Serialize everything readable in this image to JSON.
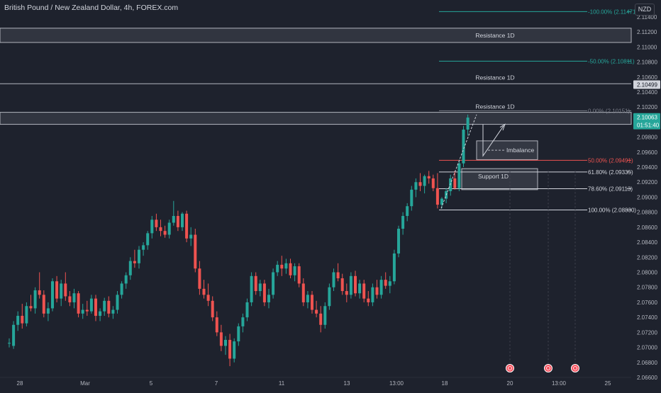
{
  "header": {
    "symbol_title": "British Pound / New Zealand Dollar, 4h, FOREX.com",
    "currency": "NZD"
  },
  "colors": {
    "background": "#1e222d",
    "up": "#26a69a",
    "down": "#ef5350",
    "zone": "#787b86",
    "fib_teal": "#26a69a",
    "fib_red": "#ef5350"
  },
  "chart_data": {
    "type": "candlestick",
    "title": "British Pound / New Zealand Dollar, 4h, FOREX.com",
    "ylabel": "NZD",
    "ylim": [
      2.066,
      2.1155
    ],
    "grid": false,
    "x_tick_labels": [
      "28",
      "Mar",
      "5",
      "7",
      "11",
      "13",
      "13:00",
      "18",
      "20",
      "13:00",
      "25"
    ],
    "y_tick_labels": [
      "2.11400",
      "2.11200",
      "2.11000",
      "2.10800",
      "2.10600",
      "2.10400",
      "2.10200",
      "2.09800",
      "2.09600",
      "2.09400",
      "2.09200",
      "2.09000",
      "2.08800",
      "2.08600",
      "2.08400",
      "2.08200",
      "2.08000",
      "2.07800",
      "2.07600",
      "2.07400",
      "2.07200",
      "2.07000",
      "2.06800",
      "2.06600"
    ],
    "price_labels": [
      {
        "text": "2.10499",
        "value": 2.10499,
        "style": "light"
      },
      {
        "text": "2.10063",
        "value": 2.10063,
        "style": "green"
      },
      {
        "text": "01:51:40",
        "value": 2.0996,
        "style": "green"
      }
    ],
    "candles": [
      [
        2.0706,
        2.0712,
        2.07,
        2.0706
      ],
      [
        2.0702,
        2.0735,
        2.0698,
        2.073
      ],
      [
        2.073,
        2.0748,
        2.0722,
        2.0742
      ],
      [
        2.0742,
        2.0758,
        2.0725,
        2.0732
      ],
      [
        2.0732,
        2.076,
        2.0728,
        2.0755
      ],
      [
        2.0755,
        2.077,
        2.0748,
        2.0752
      ],
      [
        2.0752,
        2.078,
        2.0745,
        2.0776
      ],
      [
        2.0776,
        2.08,
        2.0765,
        2.077
      ],
      [
        2.077,
        2.0776,
        2.074,
        2.0745
      ],
      [
        2.0745,
        2.076,
        2.0735,
        2.0752
      ],
      [
        2.0752,
        2.0792,
        2.0748,
        2.0788
      ],
      [
        2.0788,
        2.0795,
        2.076,
        2.0765
      ],
      [
        2.0765,
        2.079,
        2.0755,
        2.0785
      ],
      [
        2.0785,
        2.08,
        2.0762,
        2.0768
      ],
      [
        2.0768,
        2.0775,
        2.0755,
        2.076
      ],
      [
        2.076,
        2.0778,
        2.0752,
        2.0772
      ],
      [
        2.0772,
        2.0775,
        2.074,
        2.0745
      ],
      [
        2.0745,
        2.0758,
        2.0738,
        2.075
      ],
      [
        2.075,
        2.0762,
        2.0742,
        2.0748
      ],
      [
        2.0748,
        2.077,
        2.0745,
        2.0765
      ],
      [
        2.0765,
        2.077,
        2.0735,
        2.0742
      ],
      [
        2.0742,
        2.0752,
        2.0735,
        2.0748
      ],
      [
        2.0748,
        2.0766,
        2.0742,
        2.0762
      ],
      [
        2.0762,
        2.0768,
        2.074,
        2.0745
      ],
      [
        2.0745,
        2.0755,
        2.0738,
        2.075
      ],
      [
        2.075,
        2.0775,
        2.0745,
        2.077
      ],
      [
        2.077,
        2.0788,
        2.0765,
        2.0785
      ],
      [
        2.0785,
        2.08,
        2.0778,
        2.0796
      ],
      [
        2.0796,
        2.082,
        2.079,
        2.0815
      ],
      [
        2.0815,
        2.083,
        2.0806,
        2.0812
      ],
      [
        2.0812,
        2.0835,
        2.0805,
        2.083
      ],
      [
        2.083,
        2.084,
        2.0822,
        2.0836
      ],
      [
        2.0836,
        2.0855,
        2.083,
        2.0852
      ],
      [
        2.0852,
        2.0875,
        2.0845,
        2.087
      ],
      [
        2.087,
        2.0878,
        2.0855,
        2.086
      ],
      [
        2.086,
        2.087,
        2.0848,
        2.0855
      ],
      [
        2.0855,
        2.0862,
        2.0846,
        2.085
      ],
      [
        2.085,
        2.087,
        2.0845,
        2.0866
      ],
      [
        2.0866,
        2.0895,
        2.0862,
        2.0875
      ],
      [
        2.0875,
        2.0882,
        2.0855,
        2.086
      ],
      [
        2.086,
        2.088,
        2.0855,
        2.0878
      ],
      [
        2.0878,
        2.0882,
        2.084,
        2.0845
      ],
      [
        2.0845,
        2.086,
        2.0835,
        2.085
      ],
      [
        2.085,
        2.0858,
        2.08,
        2.0805
      ],
      [
        2.0805,
        2.0815,
        2.077,
        2.0778
      ],
      [
        2.0778,
        2.079,
        2.0765,
        2.077
      ],
      [
        2.077,
        2.0785,
        2.0755,
        2.0762
      ],
      [
        2.0762,
        2.0768,
        2.0735,
        2.074
      ],
      [
        2.074,
        2.0748,
        2.0715,
        2.072
      ],
      [
        2.072,
        2.073,
        2.0695,
        2.0702
      ],
      [
        2.0702,
        2.0715,
        2.069,
        2.071
      ],
      [
        2.071,
        2.0718,
        2.0675,
        2.0685
      ],
      [
        2.0685,
        2.0712,
        2.068,
        2.0708
      ],
      [
        2.0708,
        2.0732,
        2.0702,
        2.0728
      ],
      [
        2.0728,
        2.0745,
        2.072,
        2.074
      ],
      [
        2.074,
        2.0765,
        2.0735,
        2.076
      ],
      [
        2.076,
        2.08,
        2.0755,
        2.0795
      ],
      [
        2.0795,
        2.08,
        2.077,
        2.0775
      ],
      [
        2.0775,
        2.079,
        2.0768,
        2.0785
      ],
      [
        2.0785,
        2.079,
        2.0755,
        2.076
      ],
      [
        2.076,
        2.0778,
        2.0752,
        2.077
      ],
      [
        2.077,
        2.0805,
        2.0765,
        2.08
      ],
      [
        2.08,
        2.0815,
        2.0795,
        2.081
      ],
      [
        2.081,
        2.0822,
        2.0795,
        2.0805
      ],
      [
        2.0805,
        2.0818,
        2.0798,
        2.0812
      ],
      [
        2.0812,
        2.0818,
        2.0792,
        2.0796
      ],
      [
        2.0796,
        2.0812,
        2.0788,
        2.0808
      ],
      [
        2.0808,
        2.0812,
        2.078,
        2.0785
      ],
      [
        2.0785,
        2.0792,
        2.0755,
        2.076
      ],
      [
        2.076,
        2.0775,
        2.0752,
        2.077
      ],
      [
        2.077,
        2.0775,
        2.0745,
        2.075
      ],
      [
        2.075,
        2.0762,
        2.074,
        2.0745
      ],
      [
        2.0745,
        2.0755,
        2.072,
        2.073
      ],
      [
        2.073,
        2.076,
        2.0725,
        2.0755
      ],
      [
        2.0755,
        2.0785,
        2.075,
        2.078
      ],
      [
        2.078,
        2.0805,
        2.0775,
        2.08
      ],
      [
        2.08,
        2.0812,
        2.0788,
        2.0792
      ],
      [
        2.0792,
        2.0798,
        2.077,
        2.0775
      ],
      [
        2.0775,
        2.0785,
        2.076,
        2.077
      ],
      [
        2.077,
        2.08,
        2.0765,
        2.0795
      ],
      [
        2.0795,
        2.0802,
        2.0768,
        2.0772
      ],
      [
        2.0772,
        2.079,
        2.0765,
        2.0785
      ],
      [
        2.0785,
        2.079,
        2.076,
        2.0765
      ],
      [
        2.0765,
        2.0775,
        2.0755,
        2.076
      ],
      [
        2.076,
        2.0785,
        2.0755,
        2.078
      ],
      [
        2.078,
        2.079,
        2.0765,
        2.077
      ],
      [
        2.077,
        2.0795,
        2.0765,
        2.079
      ],
      [
        2.079,
        2.08,
        2.0778,
        2.0782
      ],
      [
        2.0782,
        2.0795,
        2.0772,
        2.0788
      ],
      [
        2.0788,
        2.083,
        2.0784,
        2.0825
      ],
      [
        2.0825,
        2.0862,
        2.082,
        2.0858
      ],
      [
        2.0858,
        2.088,
        2.085,
        2.0875
      ],
      [
        2.0875,
        2.0892,
        2.0868,
        2.0888
      ],
      [
        2.0888,
        2.0915,
        2.0882,
        2.091
      ],
      [
        2.091,
        2.0925,
        2.09,
        2.092
      ],
      [
        2.092,
        2.0932,
        2.0908,
        2.0915
      ],
      [
        2.0915,
        2.093,
        2.0905,
        2.0928
      ],
      [
        2.0928,
        2.0935,
        2.0918,
        2.0925
      ],
      [
        2.0925,
        2.093,
        2.0908,
        2.0912
      ],
      [
        2.0912,
        2.0932,
        2.0885,
        2.089
      ],
      [
        2.089,
        2.09,
        2.0885,
        2.0898
      ],
      [
        2.0898,
        2.0912,
        2.0892,
        2.0908
      ],
      [
        2.0908,
        2.093,
        2.0902,
        2.0925
      ],
      [
        2.0925,
        2.0935,
        2.091,
        2.0912
      ],
      [
        2.0912,
        2.095,
        2.0908,
        2.0945
      ],
      [
        2.0945,
        2.0995,
        2.094,
        2.099
      ],
      [
        2.099,
        2.101,
        2.0982,
        2.1006
      ]
    ],
    "annotations": {
      "resistance_zones": [
        {
          "label": "Resistance 1D",
          "top": 2.1125,
          "bottom": 2.1106
        },
        {
          "label": "Resistance 1D",
          "top": 2.1051,
          "bottom": 2.1051
        },
        {
          "label": "Resistance 1D",
          "top": 2.1013,
          "bottom": 2.0997
        }
      ],
      "support_zone": {
        "label": "Support 1D",
        "top": 2.0938,
        "bottom": 2.091
      },
      "imbalance": {
        "label": "Imbalance",
        "top": 2.0975,
        "bottom": 2.095
      },
      "fib_levels": [
        {
          "label": "-100.00% (2.11471)",
          "value": 2.11471,
          "color": "#26a69a"
        },
        {
          "label": "-50.00% (2.10811)",
          "value": 2.10811,
          "color": "#26a69a"
        },
        {
          "label": "0.00% (2.10151)",
          "value": 2.10151,
          "color": "#787b86"
        },
        {
          "label": "50.00% (2.09491)",
          "value": 2.09491,
          "color": "#ef5350"
        },
        {
          "label": "61.80% (2.09335)",
          "value": 2.09335,
          "color": "#d1d4dc"
        },
        {
          "label": "78.60% (2.09113)",
          "value": 2.09113,
          "color": "#d1d4dc"
        },
        {
          "label": "100.00% (2.08830)",
          "value": 2.0883,
          "color": "#d1d4dc"
        }
      ]
    }
  }
}
